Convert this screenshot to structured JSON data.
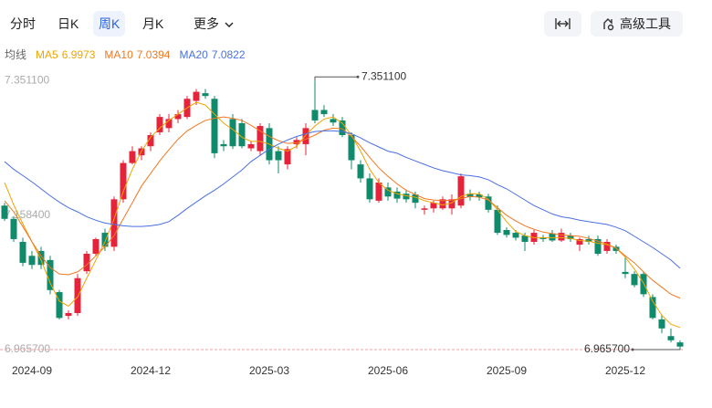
{
  "toolbar": {
    "tabs": [
      "分时",
      "日K",
      "周K",
      "月K",
      "更多"
    ],
    "active_tab": 2,
    "tools": [
      "高级工具"
    ]
  },
  "chart_data": {
    "type": "candlestick",
    "legend_title": "均线",
    "categories": [
      null,
      null,
      null,
      "2024-09",
      null,
      null,
      null,
      null,
      null,
      null,
      null,
      null,
      null,
      null,
      null,
      null,
      "2024-12",
      null,
      null,
      null,
      null,
      null,
      null,
      null,
      null,
      null,
      null,
      null,
      null,
      "2025-03",
      null,
      null,
      null,
      null,
      null,
      null,
      null,
      null,
      null,
      null,
      null,
      null,
      "2025-06",
      null,
      null,
      null,
      null,
      null,
      null,
      null,
      null,
      null,
      null,
      null,
      null,
      "2025-09",
      null,
      null,
      null,
      null,
      null,
      null,
      null,
      null,
      null,
      null,
      null,
      null,
      "2025-12",
      null,
      null,
      null,
      null,
      null,
      null
    ],
    "open": [
      7.172,
      7.153,
      7.12,
      7.1,
      7.107,
      7.094,
      7.048,
      7.014,
      7.018,
      7.078,
      7.103,
      7.133,
      7.113,
      7.181,
      7.233,
      7.244,
      7.257,
      7.277,
      7.283,
      7.296,
      7.299,
      7.322,
      7.333,
      7.325,
      7.26,
      7.296,
      7.29,
      7.254,
      7.25,
      7.283,
      7.25,
      7.231,
      7.26,
      7.26,
      7.309,
      7.309,
      7.296,
      7.294,
      7.273,
      7.231,
      7.211,
      7.179,
      7.198,
      7.192,
      7.189,
      7.188,
      7.166,
      7.168,
      7.168,
      7.168,
      7.172,
      7.189,
      7.188,
      7.185,
      7.166,
      7.137,
      7.133,
      7.129,
      7.12,
      7.126,
      7.132,
      7.122,
      7.129,
      7.116,
      7.124,
      7.124,
      7.107,
      7.113,
      7.077,
      7.074,
      7.074,
      7.041,
      7.009,
      6.985,
      6.976
    ],
    "high": [
      7.176,
      7.157,
      7.126,
      7.107,
      7.113,
      7.1,
      7.051,
      7.022,
      7.074,
      7.107,
      7.126,
      7.139,
      7.185,
      7.237,
      7.257,
      7.257,
      7.277,
      7.303,
      7.303,
      7.309,
      7.329,
      7.339,
      7.339,
      7.329,
      7.266,
      7.303,
      7.296,
      7.264,
      7.29,
      7.29,
      7.257,
      7.257,
      7.27,
      7.29,
      7.3511,
      7.316,
      7.303,
      7.299,
      7.277,
      7.237,
      7.218,
      7.211,
      7.205,
      7.198,
      7.195,
      7.192,
      7.172,
      7.179,
      7.185,
      7.188,
      7.218,
      7.195,
      7.192,
      7.189,
      7.172,
      7.141,
      7.137,
      7.133,
      7.137,
      7.13,
      7.137,
      7.139,
      7.133,
      7.126,
      7.129,
      7.129,
      7.124,
      7.116,
      7.1,
      7.078,
      7.078,
      7.045,
      7.015,
      6.996,
      6.979
    ],
    "low": [
      7.15,
      7.12,
      7.085,
      7.081,
      7.081,
      7.045,
      7.009,
      7.009,
      7.014,
      7.074,
      7.1,
      7.107,
      7.107,
      7.176,
      7.231,
      7.237,
      7.25,
      7.273,
      7.277,
      7.29,
      7.296,
      7.316,
      7.325,
      7.24,
      7.25,
      7.253,
      7.254,
      7.25,
      7.244,
      7.231,
      7.218,
      7.224,
      7.254,
      7.244,
      7.29,
      7.299,
      7.286,
      7.27,
      7.224,
      7.205,
      7.176,
      7.176,
      7.179,
      7.176,
      7.176,
      7.168,
      7.159,
      7.162,
      7.166,
      7.159,
      7.168,
      7.179,
      7.179,
      7.162,
      7.13,
      7.126,
      7.122,
      7.107,
      7.116,
      7.12,
      7.12,
      7.12,
      7.12,
      7.107,
      7.116,
      7.1,
      7.103,
      7.103,
      7.068,
      7.055,
      7.041,
      7.009,
      6.989,
      6.976,
      6.9657
    ],
    "close": [
      7.153,
      7.124,
      7.09,
      7.087,
      7.087,
      7.051,
      7.011,
      7.018,
      7.068,
      7.103,
      7.124,
      7.113,
      7.181,
      7.233,
      7.25,
      7.254,
      7.273,
      7.299,
      7.296,
      7.303,
      7.325,
      7.335,
      7.329,
      7.247,
      7.257,
      7.257,
      7.257,
      7.26,
      7.286,
      7.237,
      7.237,
      7.253,
      7.266,
      7.283,
      7.294,
      7.303,
      7.291,
      7.273,
      7.237,
      7.211,
      7.181,
      7.205,
      7.185,
      7.182,
      7.181,
      7.176,
      7.168,
      7.176,
      7.181,
      7.181,
      7.214,
      7.184,
      7.184,
      7.166,
      7.133,
      7.13,
      7.126,
      7.12,
      7.133,
      7.124,
      7.122,
      7.133,
      7.124,
      7.124,
      7.12,
      7.103,
      7.12,
      7.107,
      7.074,
      7.058,
      7.045,
      7.011,
      6.996,
      6.979,
      6.97
    ],
    "up_color": "#e5243b",
    "down_color": "#0f8a6a",
    "series": [
      {
        "name": "MA5",
        "color": "#f0a500",
        "values": [
          7.205,
          7.173,
          7.146,
          7.12,
          7.094,
          7.061,
          7.035,
          7.028,
          7.041,
          7.068,
          7.094,
          7.12,
          7.153,
          7.192,
          7.224,
          7.25,
          7.27,
          7.283,
          7.294,
          7.303,
          7.312,
          7.32,
          7.316,
          7.303,
          7.29,
          7.281,
          7.27,
          7.264,
          7.264,
          7.26,
          7.254,
          7.25,
          7.257,
          7.273,
          7.286,
          7.296,
          7.299,
          7.29,
          7.273,
          7.25,
          7.224,
          7.205,
          7.194,
          7.189,
          7.186,
          7.184,
          7.179,
          7.176,
          7.173,
          7.176,
          7.185,
          7.189,
          7.189,
          7.181,
          7.166,
          7.149,
          7.135,
          7.129,
          7.126,
          7.126,
          7.126,
          7.126,
          7.125,
          7.122,
          7.121,
          7.118,
          7.116,
          7.111,
          7.098,
          7.081,
          7.061,
          7.035,
          7.015,
          7.002,
          6.9973
        ]
      },
      {
        "name": "MA10",
        "color": "#f07820",
        "values": [
          7.179,
          7.163,
          7.142,
          7.12,
          7.1,
          7.083,
          7.074,
          7.073,
          7.077,
          7.087,
          7.1,
          7.113,
          7.129,
          7.153,
          7.176,
          7.2,
          7.218,
          7.236,
          7.252,
          7.267,
          7.279,
          7.287,
          7.294,
          7.297,
          7.299,
          7.297,
          7.294,
          7.287,
          7.279,
          7.271,
          7.265,
          7.261,
          7.262,
          7.267,
          7.273,
          7.28,
          7.283,
          7.282,
          7.271,
          7.257,
          7.241,
          7.226,
          7.214,
          7.203,
          7.194,
          7.188,
          7.182,
          7.18,
          7.179,
          7.18,
          7.182,
          7.185,
          7.184,
          7.18,
          7.169,
          7.158,
          7.15,
          7.143,
          7.138,
          7.134,
          7.132,
          7.13,
          7.129,
          7.128,
          7.125,
          7.121,
          7.117,
          7.111,
          7.1,
          7.09,
          7.077,
          7.065,
          7.055,
          7.045,
          7.0394
        ]
      },
      {
        "name": "MA20",
        "color": "#4a6fe3",
        "values": [
          7.235,
          7.224,
          7.215,
          7.206,
          7.196,
          7.186,
          7.177,
          7.169,
          7.163,
          7.156,
          7.151,
          7.147,
          7.145,
          7.143,
          7.142,
          7.142,
          7.143,
          7.145,
          7.149,
          7.158,
          7.168,
          7.177,
          7.186,
          7.194,
          7.203,
          7.213,
          7.223,
          7.235,
          7.244,
          7.253,
          7.26,
          7.266,
          7.271,
          7.275,
          7.278,
          7.279,
          7.279,
          7.278,
          7.275,
          7.269,
          7.262,
          7.256,
          7.25,
          7.247,
          7.241,
          7.236,
          7.231,
          7.226,
          7.222,
          7.219,
          7.216,
          7.215,
          7.213,
          7.209,
          7.202,
          7.196,
          7.188,
          7.18,
          7.172,
          7.166,
          7.16,
          7.156,
          7.154,
          7.151,
          7.149,
          7.147,
          7.145,
          7.141,
          7.136,
          7.128,
          7.12,
          7.112,
          7.103,
          7.094,
          7.0822
        ]
      }
    ],
    "ylim": [
      6.95,
      7.375
    ],
    "yticks": [
      {
        "value": 7.3511,
        "label": "7.351100"
      },
      {
        "value": 7.1584,
        "label": "7.158400"
      },
      {
        "value": 6.9657,
        "label": "6.965700"
      }
    ],
    "max_label": "7.351100",
    "min_label": "6.965700"
  }
}
